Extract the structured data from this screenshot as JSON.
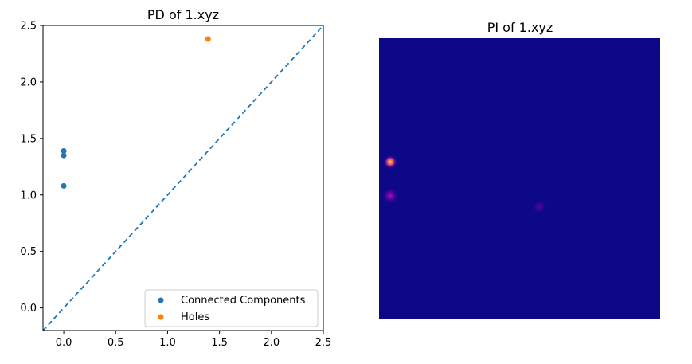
{
  "chart_data": [
    {
      "type": "scatter",
      "title": "PD of 1.xyz",
      "xlabel": "",
      "ylabel": "",
      "xlim": [
        -0.2,
        2.5
      ],
      "ylim": [
        -0.2,
        2.5
      ],
      "x_ticks": [
        "0.0",
        "0.5",
        "1.0",
        "1.5",
        "2.0",
        "2.5"
      ],
      "y_ticks": [
        "0.0",
        "0.5",
        "1.0",
        "1.5",
        "2.0",
        "2.5"
      ],
      "diagonal": {
        "style": "dashed",
        "color": "#1f77b4"
      },
      "legend_position": "bottom-right",
      "series": [
        {
          "name": "Connected Components",
          "color": "#1f77b4",
          "points": [
            [
              0.0,
              1.08
            ],
            [
              0.0,
              1.35
            ],
            [
              0.0,
              1.39
            ]
          ]
        },
        {
          "name": "Holes",
          "color": "#ff7f0e",
          "points": [
            [
              1.39,
              2.38
            ]
          ]
        }
      ]
    },
    {
      "type": "heatmap",
      "title": "PI of 1.xyz",
      "background_color": "#0d0887",
      "colormap": [
        "#0d0887",
        "#7e03a8",
        "#cc4778",
        "#f89540",
        "#f0f921"
      ],
      "hotspots": [
        {
          "x": 0.04,
          "y": 0.44,
          "intensity": 1.0,
          "spread": 0.025
        },
        {
          "x": 0.04,
          "y": 0.56,
          "intensity": 0.35,
          "spread": 0.03
        },
        {
          "x": 0.57,
          "y": 0.6,
          "intensity": 0.18,
          "spread": 0.025
        }
      ]
    }
  ]
}
